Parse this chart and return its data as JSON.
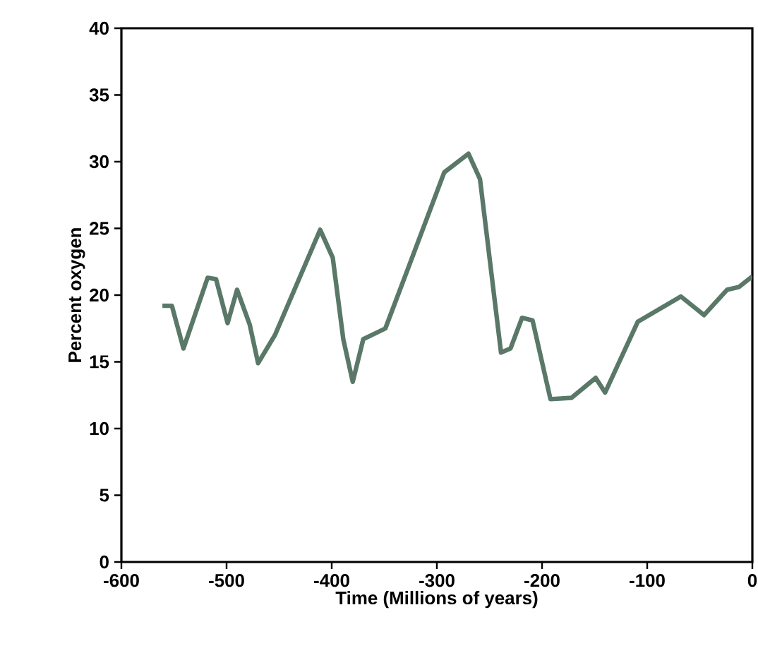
{
  "chart_data": {
    "type": "line",
    "xlabel": "Time (Millions of years)",
    "ylabel": "Percent oxygen",
    "x": [
      -561,
      -552,
      -541,
      -518,
      -510,
      -499,
      -490,
      -478,
      -470,
      -454,
      -411,
      -399,
      -389,
      -380,
      -370,
      -349,
      -326,
      -293,
      -270,
      -259,
      -239,
      -230,
      -219,
      -209,
      -192,
      -172,
      -149,
      -140,
      -109,
      -68,
      -46,
      -24,
      -13,
      0
    ],
    "series": [
      {
        "color": "#5a7868",
        "values": [
          19.2,
          19.2,
          16.0,
          21.3,
          21.2,
          17.9,
          20.4,
          17.8,
          14.9,
          17.0,
          24.9,
          22.8,
          16.7,
          13.5,
          16.7,
          17.5,
          22.3,
          29.2,
          30.6,
          28.7,
          15.7,
          16.0,
          18.3,
          18.1,
          12.2,
          12.3,
          13.8,
          12.7,
          18.0,
          19.9,
          18.5,
          20.4,
          20.6,
          21.4
        ]
      }
    ],
    "xlim": [
      -600,
      0
    ],
    "ylim": [
      0,
      40
    ],
    "xticks": [
      -600,
      -500,
      -400,
      -300,
      -200,
      -100,
      0
    ],
    "yticks": [
      0,
      5,
      10,
      15,
      20,
      25,
      30,
      35,
      40
    ],
    "grid": false,
    "marker": "none",
    "line_style": "solid"
  }
}
